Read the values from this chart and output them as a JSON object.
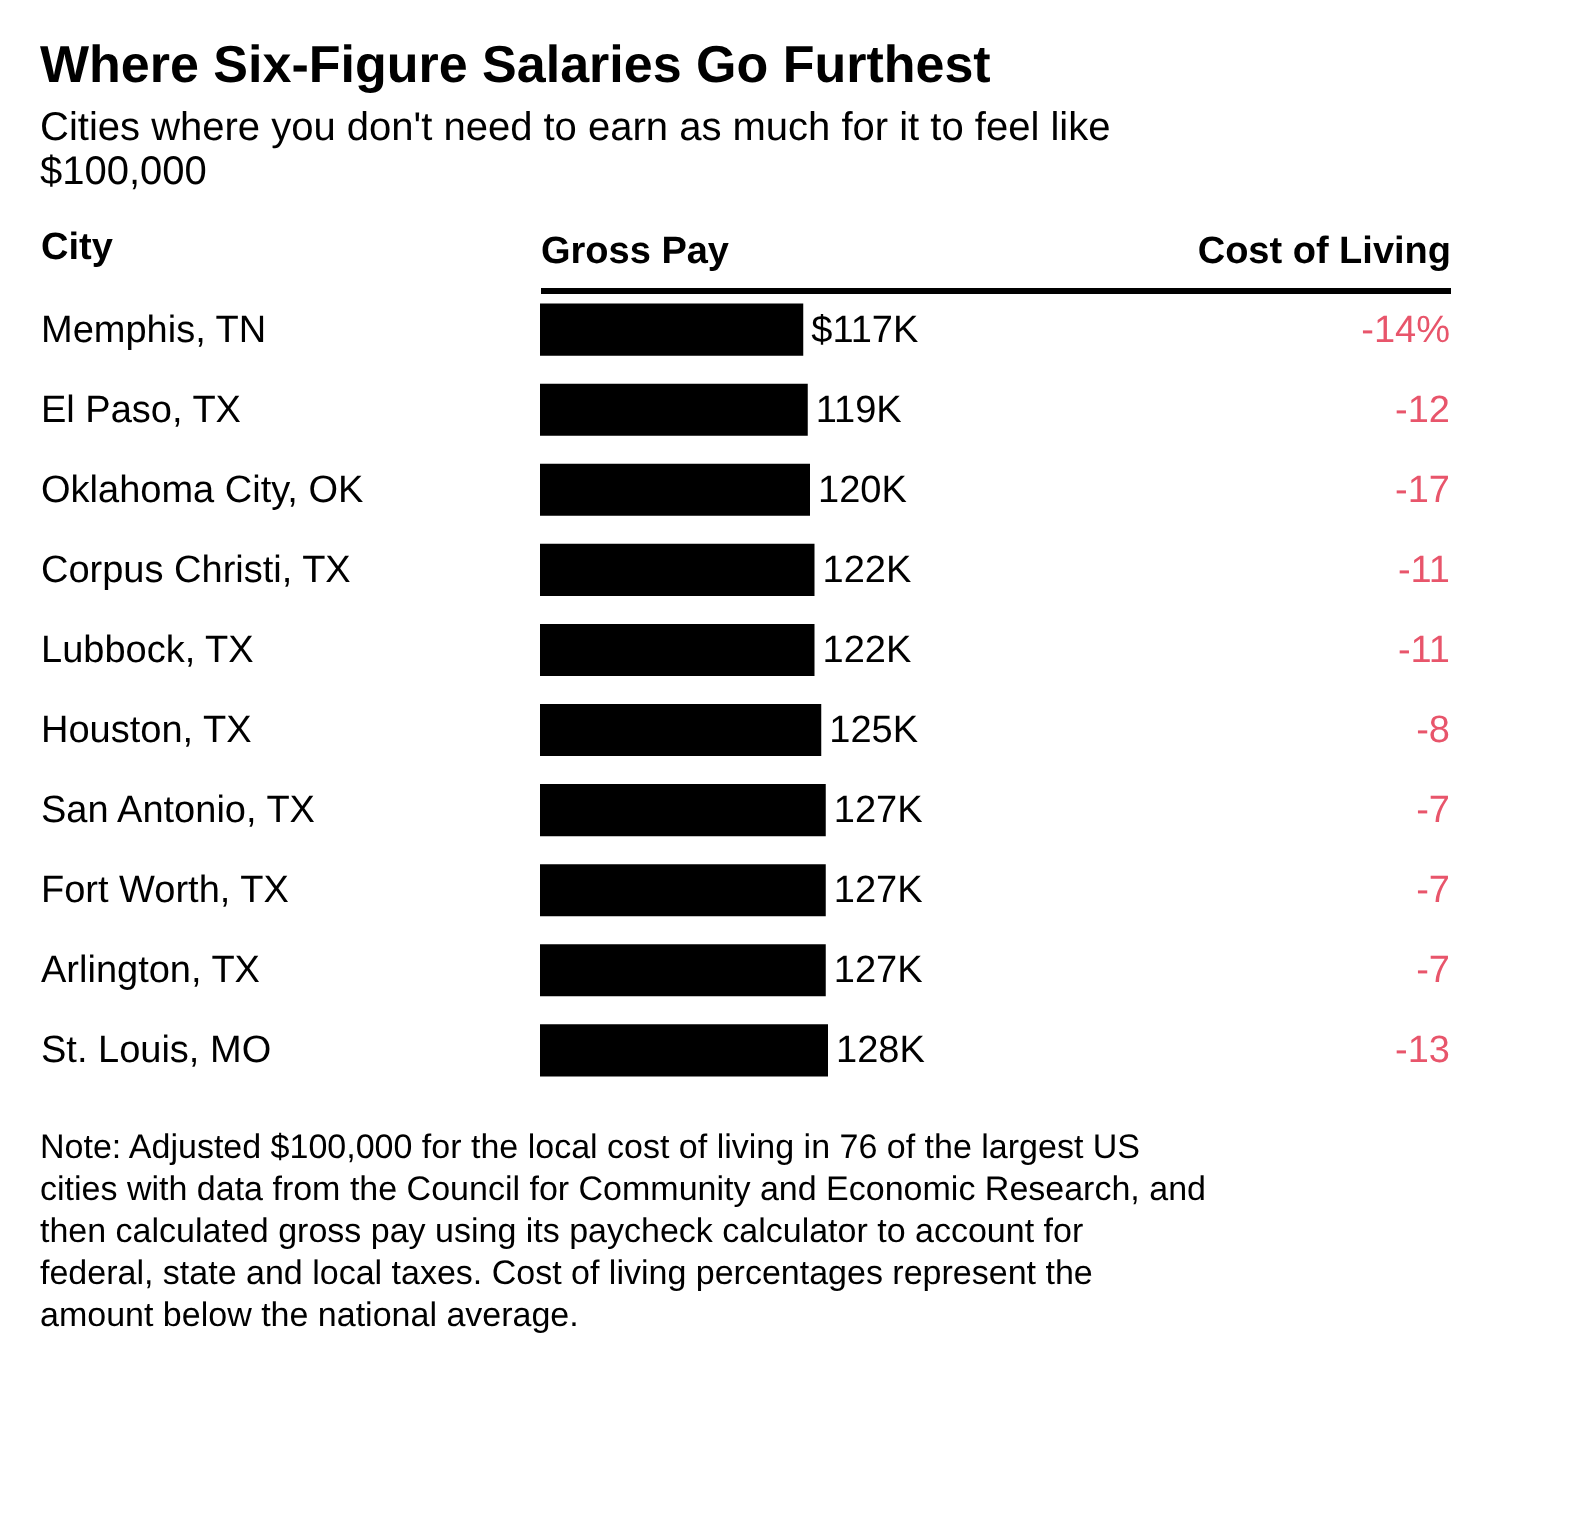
{
  "chart_data": [
    {
      "type": "bar",
      "orientation": "horizontal",
      "title": "Where Six-Figure Salaries Go Furthest",
      "subtitle": "Cities where you don't need to earn as much for it to feel like $100,000",
      "ylabel": "City",
      "xlabel": "Gross Pay",
      "categories": [
        "Memphis, TN",
        "El Paso, TX",
        "Oklahoma City, OK",
        "Corpus Christi, TX",
        "Lubbock, TX",
        "Houston, TX",
        "San Antonio, TX",
        "Fort Worth, TX",
        "Arlington, TX",
        "St. Louis, MO"
      ],
      "values": [
        117,
        119,
        120,
        122,
        122,
        125,
        127,
        127,
        127,
        128
      ],
      "value_labels": [
        "$117K",
        "119K",
        "120K",
        "122K",
        "122K",
        "125K",
        "127K",
        "127K",
        "127K",
        "128K"
      ],
      "color": "#000000",
      "xlim": [
        0,
        240
      ],
      "tick_labels": "y",
      "annotations": [
        "Note: Adjusted $100,000 for the local cost of living in 76 of the largest US cities with data from the Council for Community and Economic Research, and then calculated gross pay using its paycheck calculator to account for federal, state and local taxes. Cost of living percentages represent the amount below the national average."
      ]
    },
    {
      "type": "other",
      "xlabel": "Cost of Living",
      "values": [
        -14,
        -12,
        -17,
        -11,
        -11,
        -8,
        -7,
        -7,
        -7,
        -13
      ],
      "value_labels": [
        "-14%",
        "-12",
        "-17",
        "-11",
        "-11",
        "-8",
        "-7",
        "-7",
        "-7",
        "-13"
      ],
      "color": "#e8556b"
    }
  ]
}
